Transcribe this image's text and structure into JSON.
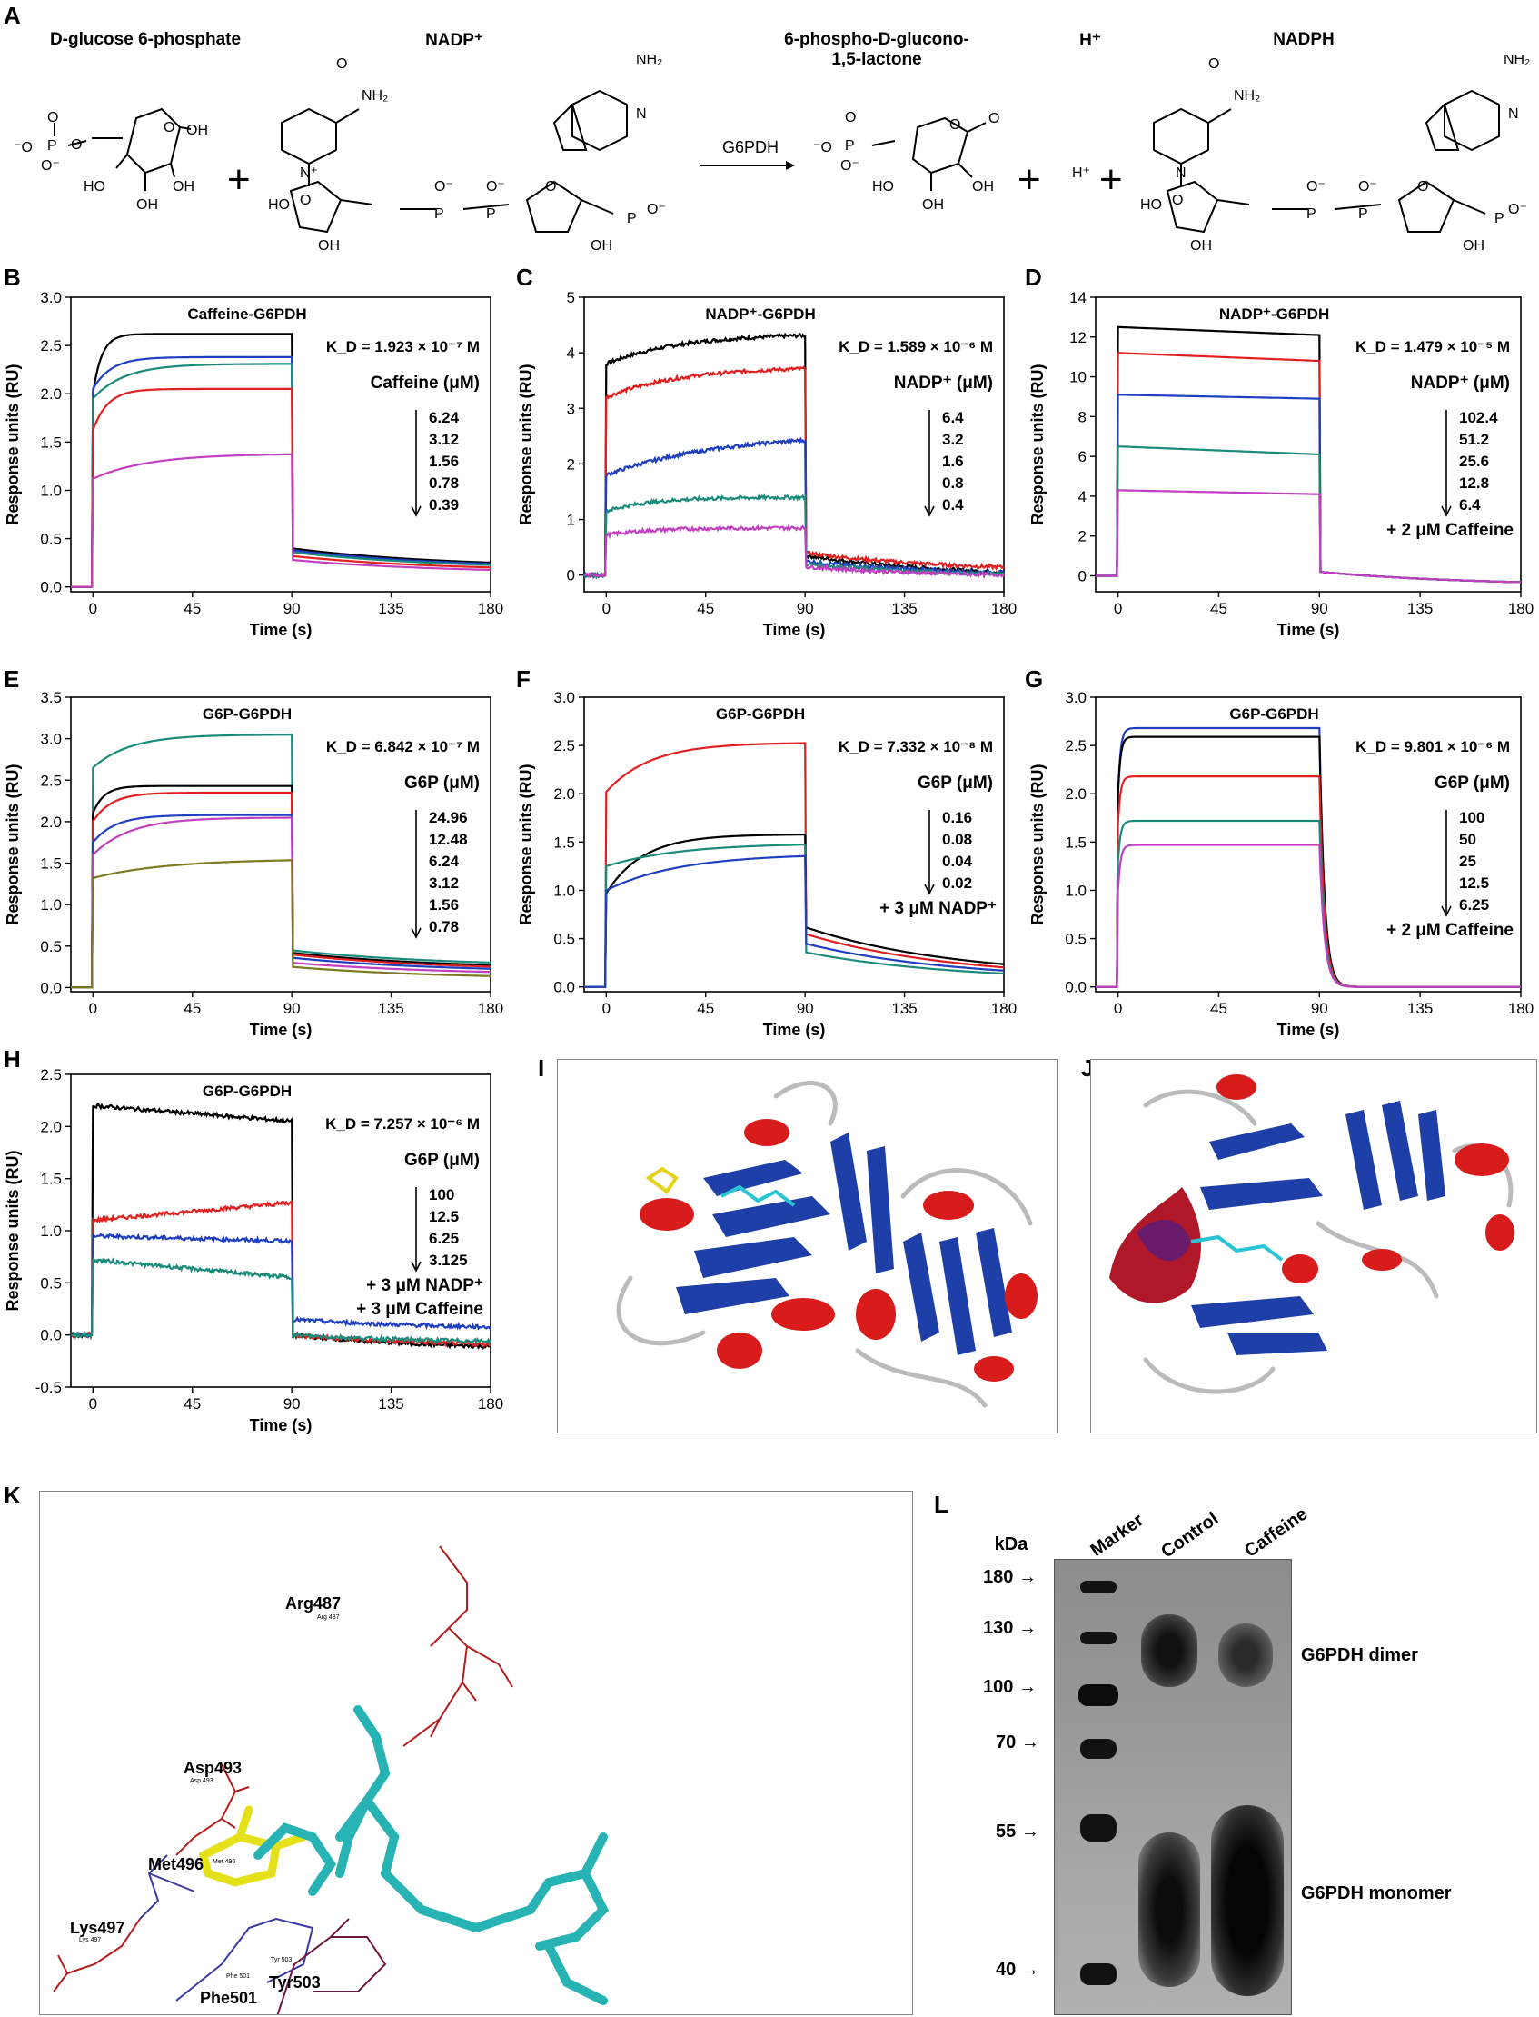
{
  "panel_letters": [
    "A",
    "B",
    "C",
    "D",
    "E",
    "F",
    "G",
    "H",
    "I",
    "J",
    "K",
    "L"
  ],
  "reaction": {
    "reactant1": "D-glucose 6-phosphate",
    "reactant2": "NADP⁺",
    "enzyme": "G6PDH",
    "product1": "6-phospho-D-glucono-1,5-lactone",
    "product2": "H⁺",
    "product3": "NADPH",
    "atoms": {
      "nh2": "NH₂",
      "o": "O",
      "n": "N",
      "p": "P",
      "oh": "OH",
      "ho": "HO",
      "ominus": "O⁻",
      "minuso": "⁻O",
      "nplus": "N⁺",
      "hplus": "H⁺",
      "plus": "+"
    }
  },
  "chart_data": [
    {
      "id": "B",
      "type": "line",
      "title": "Caffeine-G6PDH",
      "xlabel": "Time (s)",
      "ylabel": "Response units (RU)",
      "xlim": [
        -10,
        180
      ],
      "ylim": [
        -0.05,
        3.0
      ],
      "xticks": [
        "0",
        "45",
        "90",
        "135",
        "180"
      ],
      "yticks": [
        "0.0",
        "0.5",
        "1.0",
        "1.5",
        "2.0",
        "2.5",
        "3.0"
      ],
      "kd": "K_D = 1.923 × 10⁻⁷ M",
      "legend_title": "Caffeine (μM)",
      "concentrations": [
        "6.24",
        "3.12",
        "1.56",
        "0.78",
        "0.39"
      ],
      "inj_end": 90,
      "series": [
        {
          "color": "#000000",
          "jump": 2.0,
          "plateau": 2.62,
          "k": 0.25,
          "end": 0.4,
          "final": 0.2
        },
        {
          "color": "#1f3fbf",
          "jump": 2.05,
          "plateau": 2.38,
          "k": 0.12,
          "end": 0.38,
          "final": 0.19
        },
        {
          "color": "#1a8a7a",
          "jump": 1.95,
          "plateau": 2.31,
          "k": 0.07,
          "end": 0.36,
          "final": 0.18
        },
        {
          "color": "#e02020",
          "jump": 1.62,
          "plateau": 2.05,
          "k": 0.15,
          "end": 0.32,
          "final": 0.16
        },
        {
          "color": "#c040c0",
          "jump": 1.12,
          "plateau": 1.38,
          "k": 0.04,
          "end": 0.28,
          "final": 0.14
        }
      ]
    },
    {
      "id": "C",
      "type": "line",
      "title": "NADP⁺-G6PDH",
      "xlabel": "Time (s)",
      "ylabel": "Response units (RU)",
      "xlim": [
        -10,
        180
      ],
      "ylim": [
        -0.3,
        5.0
      ],
      "xticks": [
        "0",
        "45",
        "90",
        "135",
        "180"
      ],
      "yticks": [
        "0",
        "1",
        "2",
        "3",
        "4",
        "5"
      ],
      "kd": "K_D = 1.589 × 10⁻⁶ M",
      "legend_title": "NADP⁺ (μM)",
      "concentrations": [
        "6.4",
        "3.2",
        "1.6",
        "0.8",
        "0.4"
      ],
      "inj_end": 90,
      "noisy": true,
      "series": [
        {
          "color": "#000000",
          "jump": 3.8,
          "plateau": 4.35,
          "k": 0.03,
          "end": 0.35,
          "final": -0.05
        },
        {
          "color": "#e02020",
          "jump": 3.2,
          "plateau": 3.75,
          "k": 0.03,
          "end": 0.4,
          "final": 0.05
        },
        {
          "color": "#1f3fbf",
          "jump": 1.8,
          "plateau": 2.55,
          "k": 0.02,
          "end": 0.25,
          "final": -0.03
        },
        {
          "color": "#1a8a7a",
          "jump": 1.15,
          "plateau": 1.4,
          "k": 0.05,
          "end": 0.2,
          "final": -0.05
        },
        {
          "color": "#c040c0",
          "jump": 0.72,
          "plateau": 0.85,
          "k": 0.05,
          "end": 0.15,
          "final": -0.05
        }
      ]
    },
    {
      "id": "D",
      "type": "line",
      "title": "NADP⁺-G6PDH",
      "xlabel": "Time (s)",
      "ylabel": "Response units (RU)",
      "xlim": [
        -10,
        180
      ],
      "ylim": [
        -0.8,
        14
      ],
      "xticks": [
        "0",
        "45",
        "90",
        "135",
        "180"
      ],
      "yticks": [
        "0",
        "2",
        "4",
        "6",
        "8",
        "10",
        "12",
        "14"
      ],
      "kd": "K_D = 1.479 × 10⁻⁵ M",
      "legend_title": "NADP⁺ (μM)",
      "concentrations": [
        "102.4",
        "51.2",
        "25.6",
        "12.8",
        "6.4"
      ],
      "extra_lines": [
        "+ 2 μM Caffeine"
      ],
      "inj_end": 90,
      "square": true,
      "series": [
        {
          "color": "#000000",
          "jump": 12.5,
          "plateau": 12.1,
          "k": 1,
          "end": 0.2,
          "final": -0.5
        },
        {
          "color": "#e02020",
          "jump": 11.2,
          "plateau": 10.8,
          "k": 1,
          "end": 0.2,
          "final": -0.5
        },
        {
          "color": "#1f3fbf",
          "jump": 9.1,
          "plateau": 8.9,
          "k": 1,
          "end": 0.2,
          "final": -0.5
        },
        {
          "color": "#1a8a7a",
          "jump": 6.5,
          "plateau": 6.1,
          "k": 1,
          "end": 0.2,
          "final": -0.5
        },
        {
          "color": "#c040c0",
          "jump": 4.3,
          "plateau": 4.1,
          "k": 1,
          "end": 0.2,
          "final": -0.5
        }
      ]
    },
    {
      "id": "E",
      "type": "line",
      "title": "G6P-G6PDH",
      "xlabel": "Time (s)",
      "ylabel": "Response units (RU)",
      "xlim": [
        -10,
        180
      ],
      "ylim": [
        -0.05,
        3.5
      ],
      "xticks": [
        "0",
        "45",
        "90",
        "135",
        "180"
      ],
      "yticks": [
        "0.0",
        "0.5",
        "1.0",
        "1.5",
        "2.0",
        "2.5",
        "3.0",
        "3.5"
      ],
      "kd": "K_D = 6.842 × 10⁻⁷ M",
      "legend_title": "G6P (μM)",
      "concentrations": [
        "24.96",
        "12.48",
        "6.24",
        "3.12",
        "1.56",
        "0.78"
      ],
      "inj_end": 90,
      "series": [
        {
          "color": "#1a8a7a",
          "jump": 2.65,
          "plateau": 3.05,
          "k": 0.06,
          "end": 0.45,
          "final": 0.25
        },
        {
          "color": "#000000",
          "jump": 2.1,
          "plateau": 2.43,
          "k": 0.2,
          "end": 0.42,
          "final": 0.22
        },
        {
          "color": "#e02020",
          "jump": 2.0,
          "plateau": 2.35,
          "k": 0.12,
          "end": 0.4,
          "final": 0.2
        },
        {
          "color": "#1f3fbf",
          "jump": 1.75,
          "plateau": 2.08,
          "k": 0.1,
          "end": 0.36,
          "final": 0.18
        },
        {
          "color": "#c040c0",
          "jump": 1.6,
          "plateau": 2.05,
          "k": 0.06,
          "end": 0.3,
          "final": 0.15
        },
        {
          "color": "#7a7a20",
          "jump": 1.32,
          "plateau": 1.55,
          "k": 0.03,
          "end": 0.25,
          "final": 0.1
        }
      ]
    },
    {
      "id": "F",
      "type": "line",
      "title": "G6P-G6PDH",
      "xlabel": "Time (s)",
      "ylabel": "Response units (RU)",
      "xlim": [
        -10,
        180
      ],
      "ylim": [
        -0.05,
        3.0
      ],
      "xticks": [
        "0",
        "45",
        "90",
        "135",
        "180"
      ],
      "yticks": [
        "0.0",
        "0.5",
        "1.0",
        "1.5",
        "2.0",
        "2.5",
        "3.0"
      ],
      "kd": "K_D = 7.332 × 10⁻⁸ M",
      "legend_title": "G6P (μM)",
      "concentrations": [
        "0.16",
        "0.08",
        "0.04",
        "0.02"
      ],
      "extra_lines": [
        "+ 3 μM NADP⁺"
      ],
      "inj_end": 90,
      "series": [
        {
          "color": "#e02020",
          "jump": 2.02,
          "plateau": 2.53,
          "k": 0.05,
          "end": 0.55,
          "final": 0.08
        },
        {
          "color": "#000000",
          "jump": 0.97,
          "plateau": 1.58,
          "k": 0.06,
          "end": 0.62,
          "final": 0.1
        },
        {
          "color": "#1a8a7a",
          "jump": 1.25,
          "plateau": 1.49,
          "k": 0.03,
          "end": 0.36,
          "final": 0.06
        },
        {
          "color": "#1f3fbf",
          "jump": 1.0,
          "plateau": 1.38,
          "k": 0.03,
          "end": 0.45,
          "final": 0.07
        }
      ]
    },
    {
      "id": "G",
      "type": "line",
      "title": "G6P-G6PDH",
      "xlabel": "Time (s)",
      "ylabel": "Response units (RU)",
      "xlim": [
        -10,
        180
      ],
      "ylim": [
        -0.05,
        3.0
      ],
      "xticks": [
        "0",
        "45",
        "90",
        "135",
        "180"
      ],
      "yticks": [
        "0.0",
        "0.5",
        "1.0",
        "1.5",
        "2.0",
        "2.5",
        "3.0"
      ],
      "kd": "K_D = 9.801 × 10⁻⁶ M",
      "legend_title": "G6P (μM)",
      "concentrations": [
        "100",
        "50",
        "25",
        "12.5",
        "6.25"
      ],
      "extra_lines": [
        "+ 2 μM Caffeine"
      ],
      "inj_end": 90,
      "fast": true,
      "series": [
        {
          "color": "#1f3fbf",
          "jump": 2.0,
          "plateau": 2.68,
          "k": 0.9,
          "end": 0,
          "final": 0
        },
        {
          "color": "#000000",
          "jump": 2.0,
          "plateau": 2.59,
          "k": 0.9,
          "end": 0,
          "final": 0
        },
        {
          "color": "#e02020",
          "jump": 1.7,
          "plateau": 2.18,
          "k": 0.9,
          "end": 0,
          "final": 0
        },
        {
          "color": "#1a8a7a",
          "jump": 1.3,
          "plateau": 1.72,
          "k": 0.9,
          "end": 0,
          "final": 0
        },
        {
          "color": "#c040c0",
          "jump": 1.0,
          "plateau": 1.47,
          "k": 0.9,
          "end": 0,
          "final": 0
        }
      ]
    },
    {
      "id": "H",
      "type": "line",
      "title": "G6P-G6PDH",
      "xlabel": "Time (s)",
      "ylabel": "Response units (RU)",
      "xlim": [
        -10,
        180
      ],
      "ylim": [
        -0.5,
        2.5
      ],
      "xticks": [
        "0",
        "45",
        "90",
        "135",
        "180"
      ],
      "yticks": [
        "-0.5",
        "0.0",
        "0.5",
        "1.0",
        "1.5",
        "2.0",
        "2.5"
      ],
      "kd": "K_D = 7.257 × 10⁻⁶ M",
      "legend_title": "G6P (μM)",
      "concentrations": [
        "100",
        "12.5",
        "6.25",
        "3.125"
      ],
      "extra_lines": [
        "+ 3 μM NADP⁺",
        "+ 3 μM Caffeine"
      ],
      "inj_end": 90,
      "noisy": true,
      "square": true,
      "series": [
        {
          "color": "#000000",
          "jump": 2.2,
          "plateau": 2.05,
          "k": 1,
          "end": 0.0,
          "final": -0.15
        },
        {
          "color": "#e02020",
          "jump": 1.1,
          "plateau": 1.27,
          "k": 1,
          "end": 0.0,
          "final": -0.12
        },
        {
          "color": "#1f3fbf",
          "jump": 0.95,
          "plateau": 0.9,
          "k": 1,
          "end": 0.15,
          "final": 0.05
        },
        {
          "color": "#1a8a7a",
          "jump": 0.72,
          "plateau": 0.55,
          "k": 1,
          "end": 0.0,
          "final": -0.08
        }
      ]
    }
  ],
  "panel_K": {
    "residues": [
      "Arg487",
      "Asp493",
      "Met496",
      "Lys497",
      "Phe501",
      "Tyr503"
    ],
    "small_labels": [
      "Arg 487",
      "Asp 493",
      "Met 496",
      "Lys 497",
      "Phe 501",
      "Tyr 503"
    ]
  },
  "panel_L": {
    "unit": "kDa",
    "lane_labels": [
      "Marker",
      "Control",
      "Caffeine"
    ],
    "markers": [
      "180",
      "130",
      "100",
      "70",
      "55",
      "40"
    ],
    "band_labels": [
      "G6PDH dimer",
      "G6PDH monomer"
    ],
    "arrow": "→"
  }
}
